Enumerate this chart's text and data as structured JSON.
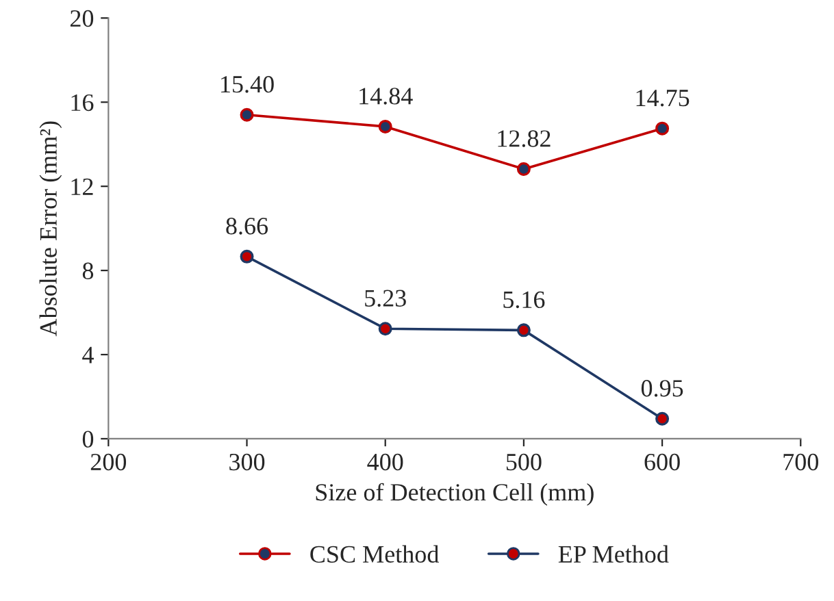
{
  "chart_data": {
    "type": "line",
    "xlabel": "Size of Detection Cell (mm)",
    "ylabel": "Absolute Error (mm²)",
    "x": [
      300,
      400,
      500,
      600
    ],
    "series": [
      {
        "name": "CSC Method",
        "color": "#c00000",
        "values": [
          15.4,
          14.84,
          12.82,
          14.75
        ],
        "value_labels": [
          "15.40",
          "14.84",
          "12.82",
          "14.75"
        ]
      },
      {
        "name": "EP Method",
        "color": "#1f3864",
        "values": [
          8.66,
          5.23,
          5.16,
          0.95
        ],
        "value_labels": [
          "8.66",
          "5.23",
          "5.16",
          "0.95"
        ]
      }
    ],
    "xlim": [
      200,
      700
    ],
    "xticks": [
      200,
      300,
      400,
      500,
      600,
      700
    ],
    "ylim": [
      0,
      20
    ],
    "yticks": [
      0,
      4,
      8,
      12,
      16,
      20
    ],
    "marker": "circle",
    "line_style": "solid",
    "grid": false,
    "legend": "bottom"
  }
}
